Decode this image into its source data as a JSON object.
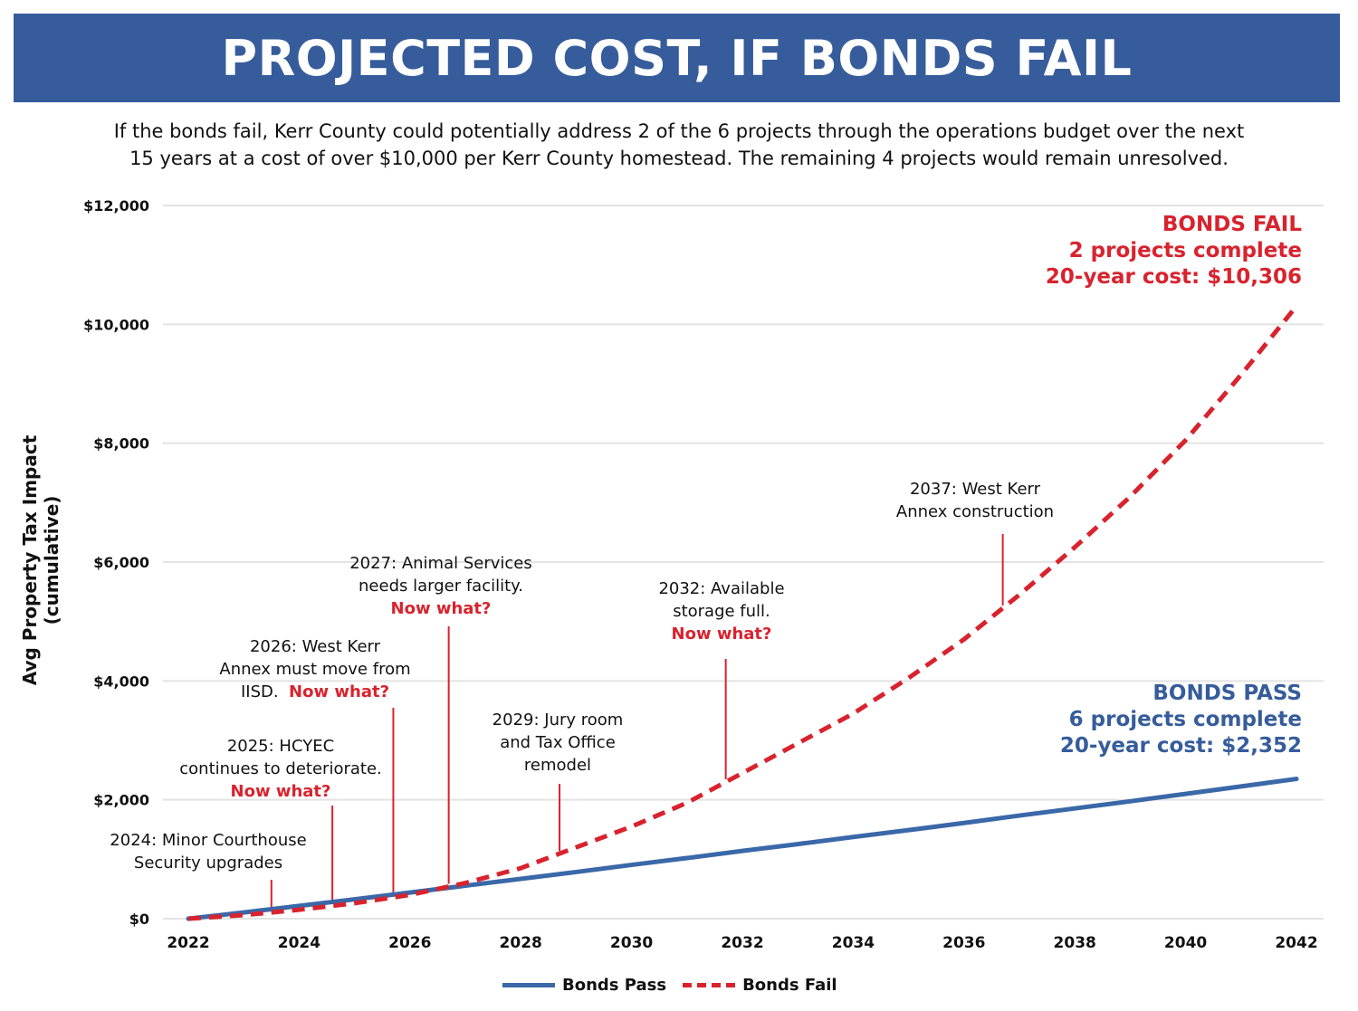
{
  "header": {
    "title": "PROJECTED COST, IF BONDS FAIL"
  },
  "subtitle": {
    "line1": "If the bonds fail, Kerr County could potentially address 2 of the 6 projects through the operations budget over the next",
    "line2": "15 years at a cost of over $10,000 per Kerr County homestead.  The remaining 4 projects would remain unresolved."
  },
  "chart_data": {
    "type": "line",
    "ylabel": "Avg Property Tax Impact (cumulative)",
    "xlabel": "",
    "xlim": [
      2022,
      2042
    ],
    "ylim": [
      0,
      12000
    ],
    "x_ticks": [
      "2022",
      "2024",
      "2026",
      "2028",
      "2030",
      "2032",
      "2034",
      "2036",
      "2038",
      "2040",
      "2042"
    ],
    "y_ticks": [
      "$0",
      "$2,000",
      "$4,000",
      "$6,000",
      "$8,000",
      "$10,000",
      "$12,000"
    ],
    "grid": true,
    "legend_position": "bottom-center",
    "x": [
      2022,
      2023,
      2024,
      2025,
      2026,
      2027,
      2028,
      2029,
      2030,
      2031,
      2032,
      2033,
      2034,
      2035,
      2036,
      2037,
      2038,
      2039,
      2040,
      2041,
      2042
    ],
    "series": [
      {
        "name": "Bonds Pass",
        "color": "#3a68a8",
        "style": "solid",
        "values": [
          0,
          105,
          215,
          325,
          440,
          555,
          670,
          785,
          905,
          1020,
          1140,
          1255,
          1375,
          1490,
          1610,
          1735,
          1855,
          1975,
          2100,
          2225,
          2352
        ]
      },
      {
        "name": "Bonds Fail",
        "color": "#d8232e",
        "style": "dashed",
        "values": [
          0,
          60,
          150,
          260,
          400,
          600,
          850,
          1200,
          1550,
          1950,
          2450,
          2950,
          3450,
          4050,
          4700,
          5450,
          6250,
          7100,
          8050,
          9150,
          10306
        ]
      }
    ],
    "annotations": {
      "a2024": {
        "l1": "2024:  Minor Courthouse",
        "l2": "Security upgrades"
      },
      "a2025": {
        "l1": "2025:  HCYEC",
        "l2": "continues to deteriorate.",
        "now": "Now what?"
      },
      "a2026": {
        "l1": "2026:  West Kerr",
        "l2": "Annex must move from",
        "l3": "IISD.",
        "now": "Now what?"
      },
      "a2027": {
        "l1": "2027:  Animal Services",
        "l2": "needs larger facility.",
        "now": "Now what?"
      },
      "a2029": {
        "l1": "2029:  Jury room",
        "l2": "and Tax Office",
        "l3": "remodel"
      },
      "a2032": {
        "l1": "2032:  Available",
        "l2": "storage full.",
        "now": "Now what?"
      },
      "a2037": {
        "l1": "2037:  West Kerr",
        "l2": "Annex construction"
      },
      "fail": {
        "l1": "BONDS FAIL",
        "l2": "2 projects complete",
        "l3": "20-year cost:  $10,306"
      },
      "pass": {
        "l1": "BONDS PASS",
        "l2": "6 projects complete",
        "l3": "20-year cost:  $2,352"
      }
    }
  }
}
